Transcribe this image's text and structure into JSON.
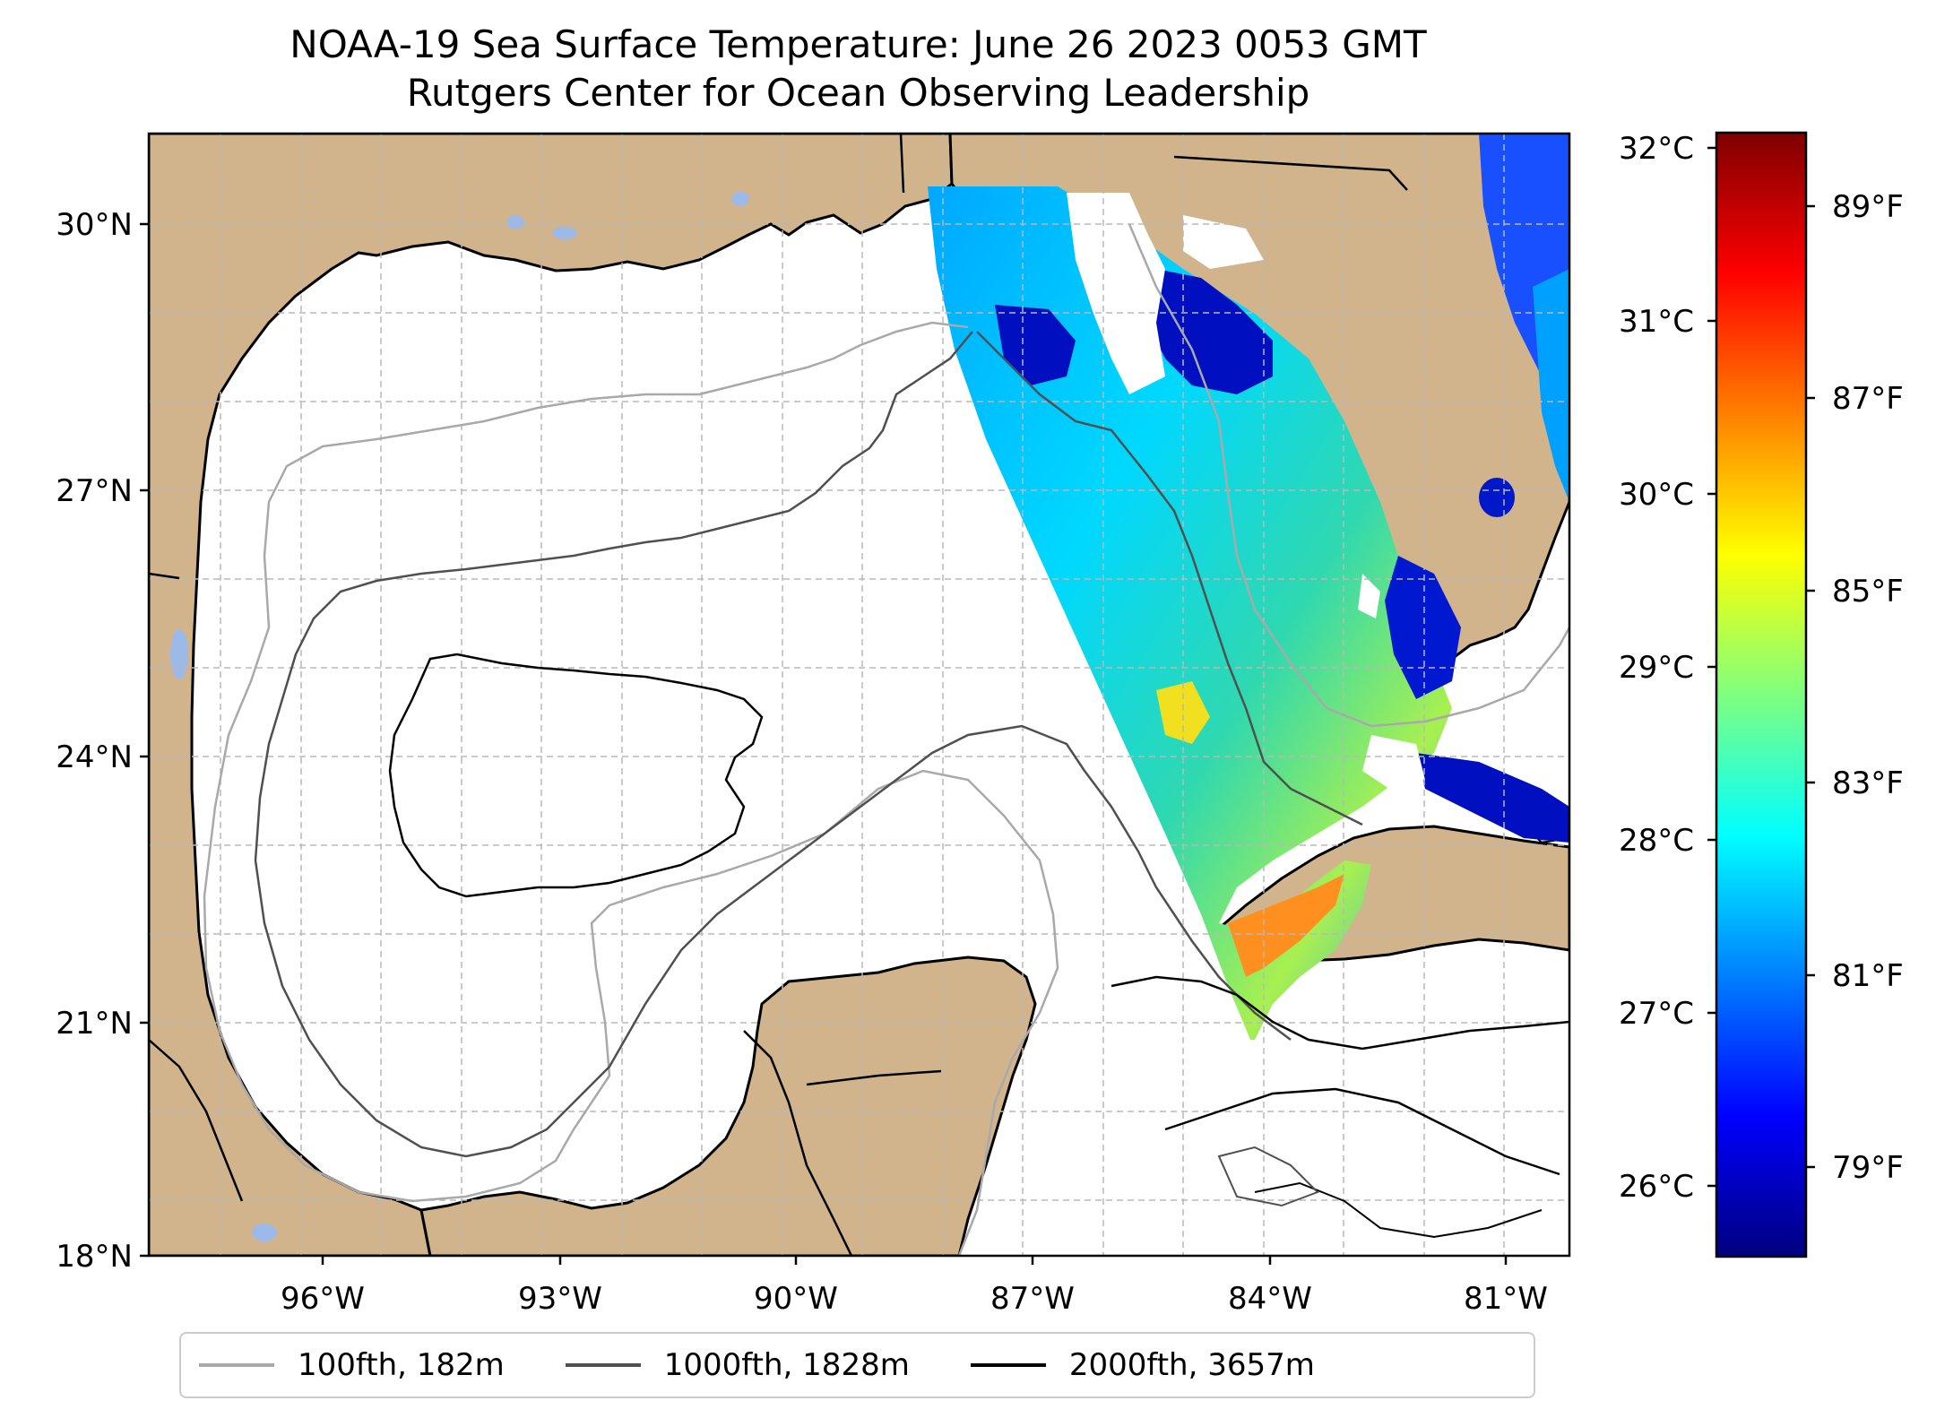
{
  "title": {
    "line1": "NOAA-19 Sea Surface Temperature: June 26 2023 0053 GMT",
    "line2": "Rutgers Center for Ocean Observing Leadership"
  },
  "map": {
    "lat_labels": [
      "30°N",
      "27°N",
      "24°N",
      "21°N",
      "18°N"
    ],
    "lon_labels": [
      "96°W",
      "93°W",
      "90°W",
      "87°W",
      "84°W",
      "81°W"
    ],
    "extent": {
      "lon": [
        -98.0,
        -80.3
      ],
      "lat": [
        18.0,
        31.0
      ]
    },
    "land_color": "#d2b48c",
    "water_body_color": "#9db9e8",
    "grid": true
  },
  "colorbar": {
    "colormap": "jet",
    "celsius_labels": [
      "32°C",
      "31°C",
      "30°C",
      "29°C",
      "28°C",
      "27°C",
      "26°C"
    ],
    "fahrenheit_labels": [
      "89°F",
      "87°F",
      "85°F",
      "83°F",
      "81°F",
      "79°F"
    ],
    "range_c": [
      25.6,
      32.1
    ]
  },
  "legend": [
    {
      "label": "100fth, 182m",
      "color": "#a9a9a9"
    },
    {
      "label": "1000fth, 1828m",
      "color": "#505050"
    },
    {
      "label": "2000fth, 3657m",
      "color": "#000000"
    }
  ]
}
